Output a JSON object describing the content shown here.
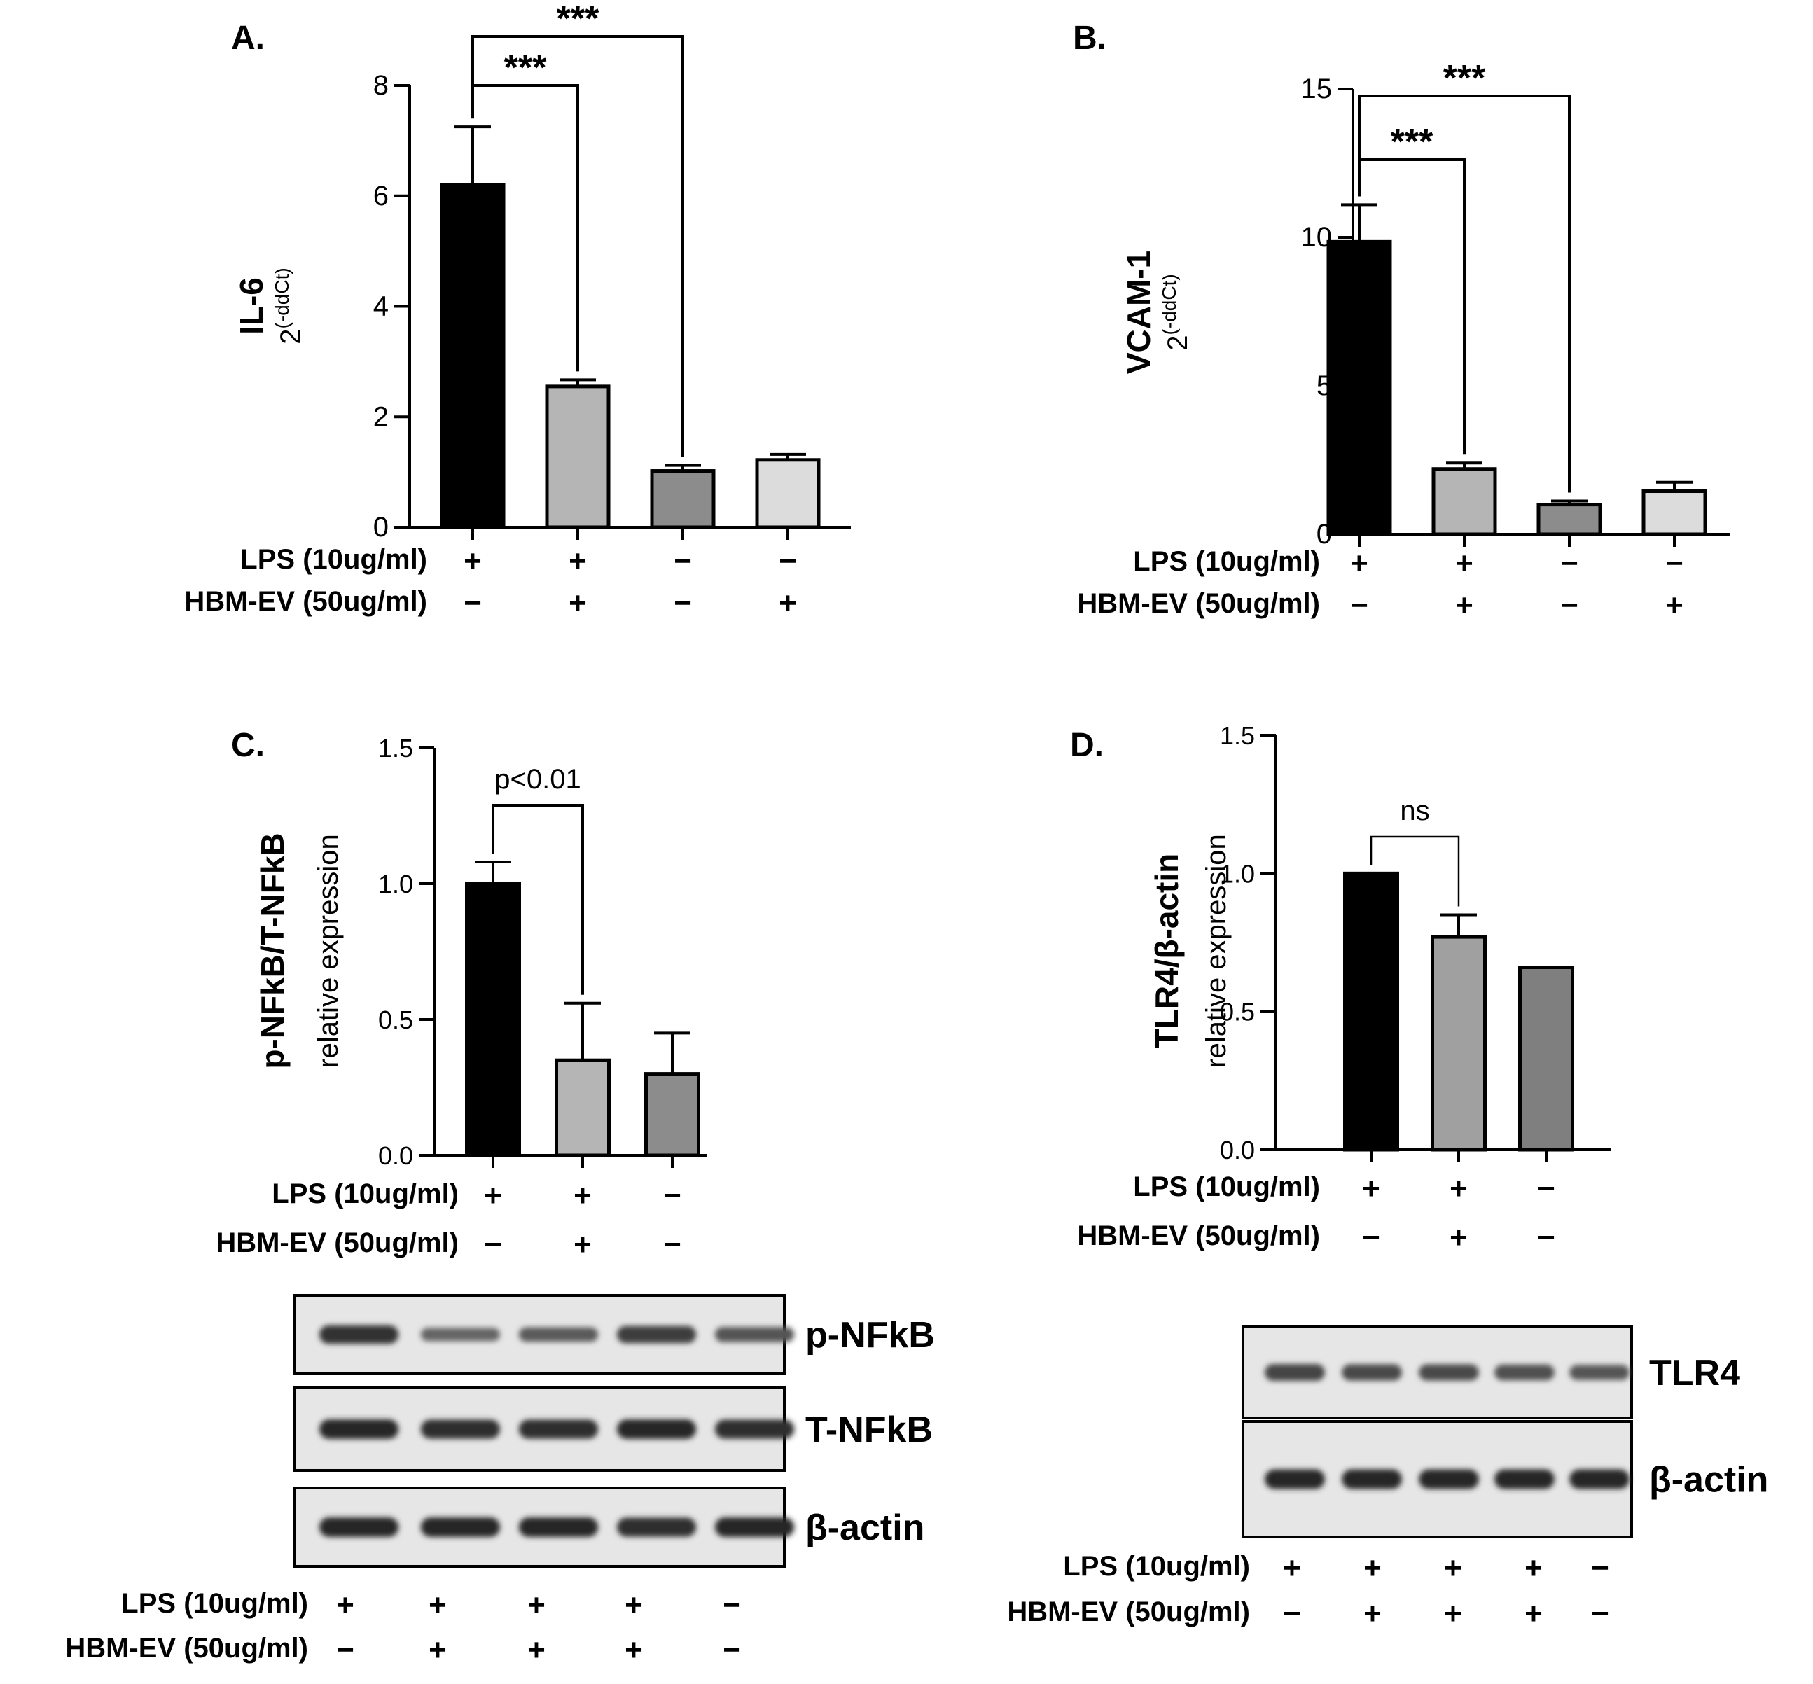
{
  "chart_data": [
    {
      "type": "bar",
      "panel_label": "A.",
      "ylabel_main": "IL-6",
      "ylabel_sub": "2(-ddCt)",
      "ylabel_base": "2",
      "ylabel_exp": "(-ddCt)",
      "ylim": [
        0,
        8
      ],
      "yticks": [
        0,
        2,
        4,
        6,
        8
      ],
      "ytick_labels": [
        "0",
        "2",
        "4",
        "6",
        "8"
      ],
      "categories": [
        "LPS+ / HBM-EV−",
        "LPS+ / HBM-EV+",
        "LPS− / HBM-EV−",
        "LPS− / HBM-EV+"
      ],
      "values": [
        6.2,
        2.55,
        1.02,
        1.22
      ],
      "errors": [
        1.05,
        0.12,
        0.1,
        0.1
      ],
      "colors": [
        "#000000",
        "#b5b5b5",
        "#8c8c8c",
        "#dcdcdc"
      ],
      "brackets": [
        {
          "from": 0,
          "to": 1,
          "label": "***"
        },
        {
          "from": 0,
          "to": 2,
          "label": "***"
        }
      ],
      "treatments": [
        {
          "label": "LPS (10ug/ml)",
          "signs": [
            "+",
            "+",
            "−",
            "−"
          ]
        },
        {
          "label": "HBM-EV (50ug/ml)",
          "signs": [
            "−",
            "+",
            "−",
            "+"
          ]
        }
      ]
    },
    {
      "type": "bar",
      "panel_label": "B.",
      "ylabel_main": "VCAM-1",
      "ylabel_sub": "2(-ddCt)",
      "ylabel_base": "2",
      "ylabel_exp": "(-ddCt)",
      "ylim": [
        0,
        15
      ],
      "yticks": [
        0,
        5,
        10,
        15
      ],
      "ytick_labels": [
        "0",
        "5",
        "10",
        "15"
      ],
      "categories": [
        "LPS+ / HBM-EV−",
        "LPS+ / HBM-EV+",
        "LPS− / HBM-EV−",
        "LPS− / HBM-EV+"
      ],
      "values": [
        9.85,
        2.2,
        1.0,
        1.45
      ],
      "errors": [
        1.25,
        0.2,
        0.12,
        0.3
      ],
      "colors": [
        "#000000",
        "#b5b5b5",
        "#8c8c8c",
        "#dcdcdc"
      ],
      "brackets": [
        {
          "from": 0,
          "to": 1,
          "label": "***"
        },
        {
          "from": 0,
          "to": 2,
          "label": "***"
        }
      ],
      "treatments": [
        {
          "label": "LPS (10ug/ml)",
          "signs": [
            "+",
            "+",
            "−",
            "−"
          ]
        },
        {
          "label": "HBM-EV (50ug/ml)",
          "signs": [
            "−",
            "+",
            "−",
            "+"
          ]
        }
      ]
    },
    {
      "type": "bar",
      "panel_label": "C.",
      "ylabel_main": "p-NFkB/T-NFkB",
      "ylabel_sub": "relative expression",
      "ylim": [
        0,
        1.5
      ],
      "yticks": [
        0,
        0.5,
        1.0,
        1.5
      ],
      "ytick_labels": [
        "0.0",
        "0.5",
        "1.0",
        "1.5"
      ],
      "categories": [
        "LPS+ / HBM-EV−",
        "LPS+ / HBM-EV+",
        "LPS− / HBM-EV−"
      ],
      "values": [
        1.0,
        0.35,
        0.3
      ],
      "errors": [
        0.08,
        0.21,
        0.15
      ],
      "colors": [
        "#000000",
        "#b5b5b5",
        "#8c8c8c"
      ],
      "brackets": [
        {
          "from": 0,
          "to": 1,
          "label": "p<0.01"
        }
      ],
      "treatments": [
        {
          "label": "LPS (10ug/ml)",
          "signs": [
            "+",
            "+",
            "−"
          ]
        },
        {
          "label": "HBM-EV (50ug/ml)",
          "signs": [
            "−",
            "+",
            "−"
          ]
        }
      ]
    },
    {
      "type": "bar",
      "panel_label": "D.",
      "ylabel_main": "TLR4/β-actin",
      "ylabel_sub": "relative expression",
      "ylim": [
        0,
        1.5
      ],
      "yticks": [
        0,
        0.5,
        1.0,
        1.5
      ],
      "ytick_labels": [
        "0.0",
        "0.5",
        "1.0",
        "1.5"
      ],
      "categories": [
        "LPS+ / HBM-EV−",
        "LPS+ / HBM-EV+",
        "LPS− / HBM-EV−"
      ],
      "values": [
        1.0,
        0.77,
        0.66
      ],
      "errors": [
        0,
        0.08,
        0
      ],
      "colors": [
        "#000000",
        "#a0a0a0",
        "#7f7f7f"
      ],
      "brackets": [
        {
          "from": 0,
          "to": 1,
          "label": "ns"
        }
      ],
      "treatments": [
        {
          "label": "LPS (10ug/ml)",
          "signs": [
            "+",
            "+",
            "−"
          ]
        },
        {
          "label": "HBM-EV (50ug/ml)",
          "signs": [
            "−",
            "+",
            "−"
          ]
        }
      ]
    }
  ],
  "blots": [
    {
      "panel": "C",
      "rows": [
        {
          "label": "p-NFkB",
          "intensity": [
            0.9,
            0.45,
            0.55,
            0.8,
            0.6
          ]
        },
        {
          "label": "T-NFkB",
          "intensity": [
            1.0,
            0.95,
            0.95,
            1.0,
            0.95
          ]
        },
        {
          "label": "β-actin",
          "intensity": [
            1.0,
            1.0,
            1.0,
            0.95,
            1.0
          ]
        }
      ],
      "treatments": [
        {
          "label": "LPS (10ug/ml)",
          "signs": [
            "+",
            "+",
            "+",
            "+",
            "−"
          ]
        },
        {
          "label": "HBM-EV (50ug/ml)",
          "signs": [
            "−",
            "+",
            "+",
            "+",
            "−"
          ]
        }
      ]
    },
    {
      "panel": "D",
      "rows": [
        {
          "label": "TLR4",
          "intensity": [
            0.75,
            0.7,
            0.7,
            0.65,
            0.6
          ]
        },
        {
          "label": "β-actin",
          "intensity": [
            1.0,
            1.0,
            1.0,
            1.0,
            1.0
          ]
        }
      ],
      "treatments": [
        {
          "label": "LPS (10ug/ml)",
          "signs": [
            "+",
            "+",
            "+",
            "+",
            "−"
          ]
        },
        {
          "label": "HBM-EV (50ug/ml)",
          "signs": [
            "−",
            "+",
            "+",
            "+",
            "−"
          ]
        }
      ]
    }
  ]
}
